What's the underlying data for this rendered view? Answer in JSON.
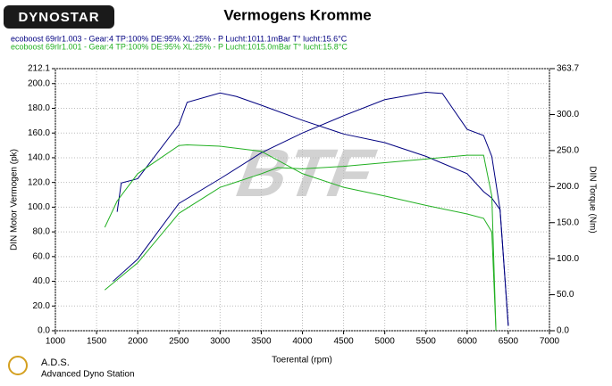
{
  "chart_data": {
    "type": "line",
    "logo": "DYNOSTAR",
    "title": "Vermogens Kromme",
    "xlabel": "Toerental (rpm)",
    "ylabel": "DIN Motor Vermogen (pk)",
    "y2label": "DIN Torque (Nm)",
    "footer_title": "A.D.S.",
    "footer_subtitle": "Advanced Dyno Station",
    "watermark": "BTF",
    "xlim": [
      1000,
      7000
    ],
    "xticks": [
      1000,
      1500,
      2000,
      2500,
      3000,
      3500,
      4000,
      4500,
      5000,
      5500,
      6000,
      6500,
      7000
    ],
    "ylim": [
      0,
      212.1
    ],
    "yticks": [
      {
        "value": 0,
        "label": "0.0"
      },
      {
        "value": 20,
        "label": "20.0"
      },
      {
        "value": 40,
        "label": "40.0"
      },
      {
        "value": 60,
        "label": "60.0"
      },
      {
        "value": 80,
        "label": "80.0"
      },
      {
        "value": 100,
        "label": "100.0"
      },
      {
        "value": 120,
        "label": "120.0"
      },
      {
        "value": 140,
        "label": "140.0"
      },
      {
        "value": 160,
        "label": "160.0"
      },
      {
        "value": 180,
        "label": "180.0"
      },
      {
        "value": 200,
        "label": "200.0"
      },
      212.1
    ],
    "y2lim": [
      0,
      363.7
    ],
    "y2ticks": [
      {
        "value": 0,
        "label": "0.0"
      },
      {
        "value": 50,
        "label": "50.0"
      },
      {
        "value": 100,
        "label": "100.0"
      },
      {
        "value": 150,
        "label": "150.0"
      },
      {
        "value": 200,
        "label": "200.0"
      },
      {
        "value": 250,
        "label": "250.0"
      },
      {
        "value": 300,
        "label": "300.0"
      },
      363.7
    ],
    "grid": true,
    "series": [
      {
        "name": "ecoboost 69rlr1.003 - Gear:4 TP:100% DE:95% XL:25%   - P Lucht:1011.1mBar T° lucht:15.6°C",
        "color": "#000080",
        "x": [
          1700,
          2000,
          2500,
          3000,
          3500,
          4000,
          4500,
          5000,
          5500,
          5700,
          6000,
          6200,
          6300,
          6400,
          6500
        ],
        "values": [
          40,
          58,
          103,
          123,
          144,
          160,
          174,
          187,
          193,
          192,
          163,
          158,
          141,
          98,
          4
        ]
      },
      {
        "color": "#000080",
        "axis": "y2",
        "x": [
          1750,
          1800,
          2000,
          2500,
          2600,
          3000,
          3200,
          3500,
          4000,
          4500,
          5000,
          5500,
          6000,
          6200,
          6300,
          6400,
          6500
        ],
        "values": [
          165,
          205,
          211,
          286,
          317,
          330,
          325,
          313,
          292,
          273,
          261,
          242,
          218,
          193,
          184,
          168,
          7
        ]
      },
      {
        "name": "ecoboost 69rlr1.001 - Gear:4 TP:100% DE:95% XL:25%   - P Lucht:1015.0mBar T° lucht:15.8°C",
        "color": "#22b022",
        "x": [
          1600,
          2000,
          2500,
          3000,
          3500,
          3700,
          4000,
          4500,
          5000,
          5500,
          6000,
          6200,
          6300,
          6350
        ],
        "values": [
          33,
          55,
          95,
          116,
          127,
          132,
          131,
          133,
          136,
          139,
          142,
          142,
          109,
          0
        ]
      },
      {
        "color": "#22b022",
        "axis": "y2",
        "x": [
          1600,
          1750,
          2000,
          2500,
          2600,
          3000,
          3500,
          4000,
          4500,
          5000,
          5500,
          6000,
          6200,
          6300,
          6350
        ],
        "values": [
          143.5,
          180,
          218,
          257,
          258,
          256,
          249,
          218,
          199,
          187,
          174,
          162,
          156,
          137,
          0
        ]
      }
    ]
  }
}
